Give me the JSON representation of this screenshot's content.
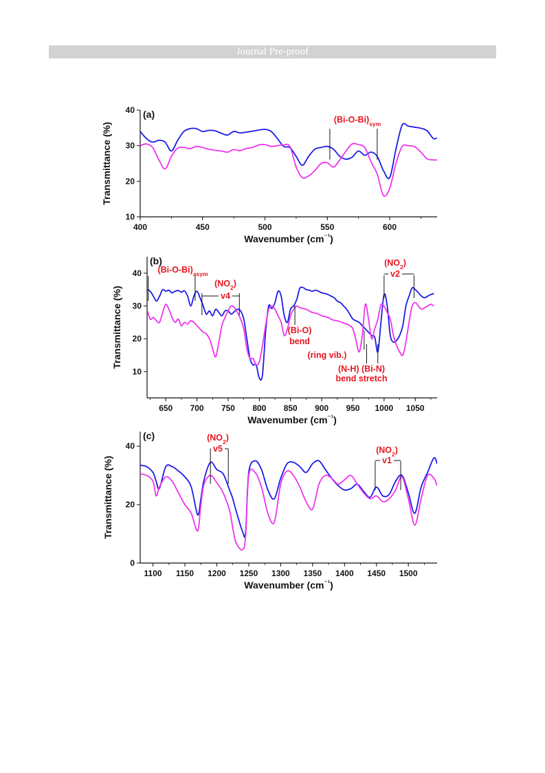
{
  "header": {
    "banner_text": "Journal Pre-proof"
  },
  "colors": {
    "series_1": "#1a1ae6",
    "series_2": "#ee33ee",
    "annotation": "#e8141e",
    "axis": "#111111"
  },
  "chart_data": [
    {
      "type": "line",
      "panel_label": "(a)",
      "xlabel": "Wavenumber (cm⁻¹)",
      "ylabel": "Transmittance (%)",
      "xlim": [
        400,
        638
      ],
      "ylim": [
        10,
        40
      ],
      "xticks": [
        400,
        450,
        500,
        550,
        600
      ],
      "yticks": [
        10,
        20,
        30,
        40
      ],
      "grid": false,
      "legend": "none",
      "annotations": [
        {
          "text": "(Bi-O-Bi)",
          "sub": "sym",
          "marks": [
            552,
            590
          ]
        }
      ],
      "series": [
        {
          "color": "blue",
          "x": [
            400,
            405,
            410,
            415,
            420,
            425,
            430,
            435,
            440,
            445,
            450,
            455,
            460,
            465,
            470,
            475,
            480,
            485,
            490,
            495,
            500,
            505,
            510,
            515,
            520,
            525,
            530,
            535,
            540,
            545,
            550,
            555,
            560,
            565,
            570,
            575,
            580,
            585,
            590,
            595,
            600,
            605,
            610,
            615,
            620,
            625,
            630,
            635,
            638
          ],
          "y": [
            34,
            32,
            31,
            31.5,
            31,
            28.5,
            31.5,
            34,
            34.8,
            34.8,
            34,
            34.3,
            34.2,
            33.5,
            33,
            34,
            33.6,
            33.8,
            34.1,
            34.4,
            34.6,
            34,
            32,
            29.8,
            29.5,
            27,
            24.5,
            27,
            29,
            29.5,
            29.8,
            29,
            27,
            26.2,
            26.8,
            28.5,
            27.3,
            28.2,
            27,
            23,
            21,
            29,
            35.8,
            35.5,
            35.2,
            34.9,
            34.2,
            32,
            32.2
          ]
        },
        {
          "color": "magenta",
          "x": [
            400,
            405,
            410,
            415,
            420,
            425,
            430,
            435,
            440,
            445,
            450,
            455,
            460,
            465,
            470,
            475,
            480,
            485,
            490,
            495,
            500,
            505,
            510,
            515,
            520,
            525,
            530,
            535,
            540,
            545,
            550,
            555,
            560,
            565,
            570,
            575,
            580,
            585,
            590,
            595,
            600,
            605,
            610,
            615,
            620,
            625,
            630,
            635,
            638
          ],
          "y": [
            30,
            30.5,
            29.5,
            26,
            23.5,
            27,
            29.3,
            29.5,
            29.2,
            29.8,
            29.5,
            29,
            28.7,
            28.5,
            28.2,
            28.9,
            28.6,
            29.2,
            29.5,
            30.2,
            30.3,
            29.8,
            30,
            30.2,
            29.8,
            24,
            21,
            21.5,
            23,
            25,
            25.2,
            24,
            26,
            28.5,
            30.5,
            30.3,
            29.5,
            25.5,
            22,
            16,
            18,
            25,
            29.8,
            30,
            29.7,
            28.2,
            26.3,
            26,
            26
          ]
        }
      ]
    },
    {
      "type": "line",
      "panel_label": "(b)",
      "xlabel": "Wavenumber (cm⁻¹)",
      "ylabel": "Transmittance (%)",
      "xlim": [
        620,
        1085
      ],
      "ylim": [
        2,
        45
      ],
      "xticks": [
        650,
        700,
        750,
        800,
        850,
        900,
        950,
        1000,
        1050
      ],
      "yticks": [
        10,
        20,
        30,
        40
      ],
      "grid": false,
      "legend": "none",
      "annotations": [
        {
          "text": "(Bi-O-Bi)",
          "sub": "asym",
          "marks": [
            622,
            697
          ]
        },
        {
          "text": "(NO",
          "sub": "2",
          "tail": ")",
          "line2": "v4",
          "marks": [
            708,
            768
          ]
        },
        {
          "text": "(NO",
          "sub": "2",
          "tail": ")",
          "line2": "v2",
          "marks": [
            1000,
            1048
          ]
        },
        {
          "text": "(Bi-O)",
          "line2": "bend",
          "marks": [
            857
          ]
        },
        {
          "text": "(ring vib.)",
          "marks": [
            968
          ]
        },
        {
          "text": "(N-H) (Bi-N)",
          "line2": "bend stretch",
          "marks": [
            972,
            990
          ]
        }
      ],
      "series": [
        {
          "color": "blue",
          "x": [
            620,
            625,
            630,
            635,
            640,
            645,
            650,
            655,
            660,
            665,
            670,
            675,
            680,
            685,
            690,
            695,
            700,
            705,
            710,
            715,
            720,
            725,
            730,
            735,
            740,
            745,
            750,
            755,
            760,
            765,
            770,
            775,
            780,
            785,
            790,
            795,
            800,
            805,
            810,
            815,
            820,
            825,
            830,
            835,
            840,
            845,
            850,
            855,
            860,
            865,
            870,
            875,
            880,
            885,
            890,
            895,
            900,
            905,
            910,
            915,
            920,
            925,
            930,
            935,
            940,
            945,
            950,
            955,
            960,
            965,
            970,
            975,
            980,
            985,
            990,
            995,
            1000,
            1005,
            1010,
            1015,
            1020,
            1025,
            1030,
            1035,
            1040,
            1045,
            1050,
            1055,
            1060,
            1065,
            1070,
            1075,
            1080
          ],
          "y": [
            35,
            34.5,
            33,
            31.5,
            33,
            35,
            34.5,
            34.8,
            34,
            34.5,
            34.7,
            34.2,
            34.6,
            33,
            30,
            33,
            34.5,
            32.5,
            30,
            27.5,
            28.5,
            27,
            29,
            28,
            27,
            28.5,
            28.5,
            27.5,
            28.3,
            29,
            28.5,
            26,
            20,
            14,
            12,
            12,
            8,
            9,
            22,
            30,
            29.2,
            31,
            34.5,
            33,
            27,
            25,
            29,
            30,
            32,
            35.4,
            35.6,
            35,
            34.8,
            34.5,
            34.8,
            34.5,
            34,
            33.8,
            33.5,
            33,
            32.5,
            31.5,
            31,
            30,
            29,
            27.5,
            26,
            25.5,
            25,
            24,
            23,
            22,
            21,
            20.5,
            16,
            25,
            33.5,
            30,
            21,
            19,
            19.5,
            21,
            24,
            30,
            33,
            35.5,
            35,
            34,
            33,
            32.5,
            33,
            33.5,
            33.8
          ]
        },
        {
          "color": "magenta",
          "x": [
            620,
            625,
            630,
            635,
            640,
            645,
            650,
            655,
            660,
            665,
            670,
            675,
            680,
            685,
            690,
            695,
            700,
            705,
            710,
            715,
            720,
            725,
            730,
            735,
            740,
            745,
            750,
            755,
            760,
            765,
            770,
            775,
            780,
            785,
            790,
            795,
            800,
            805,
            810,
            815,
            820,
            825,
            830,
            835,
            840,
            845,
            850,
            855,
            860,
            865,
            870,
            875,
            880,
            885,
            890,
            895,
            900,
            905,
            910,
            915,
            920,
            925,
            930,
            935,
            940,
            945,
            950,
            955,
            960,
            965,
            970,
            975,
            980,
            985,
            990,
            995,
            1000,
            1005,
            1010,
            1015,
            1020,
            1025,
            1030,
            1035,
            1040,
            1045,
            1050,
            1055,
            1060,
            1065,
            1070,
            1075,
            1080
          ],
          "y": [
            29,
            26,
            26.5,
            25.5,
            25,
            28,
            30.5,
            29,
            26.5,
            25,
            26,
            24,
            25,
            24.5,
            25.5,
            25,
            24,
            23,
            22,
            21.5,
            20,
            17,
            14.5,
            19,
            24,
            26.5,
            28.5,
            30,
            29.5,
            28,
            26,
            23,
            17,
            14,
            14,
            12,
            13,
            18,
            24,
            29,
            30,
            29,
            27,
            25,
            21,
            23,
            27,
            29,
            30,
            29.5,
            29.2,
            29,
            28.5,
            28,
            27.8,
            27.5,
            27,
            26.8,
            26.5,
            26,
            25.6,
            25.5,
            25.2,
            24.8,
            24.5,
            24,
            23,
            19.5,
            16,
            21,
            30.5,
            26,
            20,
            23,
            26,
            30.4,
            29.9,
            28,
            26,
            21,
            18,
            16,
            15,
            19,
            25,
            30,
            31,
            30,
            29,
            29.5,
            30,
            30.5,
            30
          ]
        }
      ]
    },
    {
      "type": "line",
      "panel_label": "(c)",
      "xlabel": "Wavenumber (cm⁻¹)",
      "ylabel": "Transmittance (%)",
      "xlim": [
        1080,
        1545
      ],
      "ylim": [
        0,
        45
      ],
      "xticks": [
        1100,
        1150,
        1200,
        1250,
        1300,
        1350,
        1400,
        1450,
        1500
      ],
      "yticks": [
        0,
        20,
        40
      ],
      "grid": false,
      "legend": "none",
      "annotations": [
        {
          "text": "(NO",
          "sub": "2",
          "tail": ")",
          "line2": "v5",
          "marks": [
            1190,
            1218
          ]
        },
        {
          "text": "(NO",
          "sub": "2",
          "tail": ")",
          "line2": "v1",
          "marks": [
            1448,
            1488
          ]
        }
      ],
      "series": [
        {
          "color": "blue",
          "x": [
            1080,
            1090,
            1100,
            1105,
            1110,
            1120,
            1130,
            1140,
            1150,
            1160,
            1170,
            1175,
            1180,
            1190,
            1200,
            1210,
            1220,
            1225,
            1230,
            1240,
            1245,
            1250,
            1260,
            1270,
            1280,
            1290,
            1300,
            1310,
            1320,
            1330,
            1340,
            1350,
            1360,
            1370,
            1380,
            1390,
            1400,
            1410,
            1420,
            1430,
            1440,
            1450,
            1460,
            1470,
            1480,
            1490,
            1500,
            1510,
            1520,
            1530,
            1540,
            1545
          ],
          "y": [
            33.5,
            33,
            31,
            28,
            25.5,
            33,
            33,
            31.5,
            29.5,
            26,
            16.5,
            22,
            28.5,
            34.5,
            32,
            30.5,
            25,
            22,
            18,
            11,
            10.5,
            31,
            35,
            32,
            25,
            22,
            29,
            34,
            34.5,
            33,
            31,
            34,
            35,
            32,
            29,
            26.5,
            25,
            25.5,
            27,
            24.5,
            22.5,
            26,
            23,
            23.5,
            28,
            30,
            24,
            17,
            26,
            31,
            36,
            34
          ]
        },
        {
          "color": "magenta",
          "x": [
            1080,
            1090,
            1100,
            1105,
            1110,
            1120,
            1130,
            1140,
            1150,
            1160,
            1170,
            1175,
            1180,
            1190,
            1200,
            1210,
            1220,
            1225,
            1230,
            1240,
            1245,
            1250,
            1260,
            1270,
            1280,
            1290,
            1300,
            1310,
            1320,
            1330,
            1340,
            1350,
            1360,
            1370,
            1380,
            1390,
            1400,
            1410,
            1420,
            1430,
            1440,
            1450,
            1460,
            1470,
            1480,
            1490,
            1500,
            1510,
            1520,
            1530,
            1540,
            1545
          ],
          "y": [
            30.5,
            30,
            28,
            23,
            26,
            29.5,
            28,
            24,
            20,
            17,
            11,
            20,
            27,
            30,
            27.5,
            24,
            18,
            12,
            7,
            4.5,
            9,
            30,
            31,
            26,
            17,
            14,
            27,
            31.5,
            30,
            26,
            21,
            18.5,
            27,
            30,
            29,
            27,
            28.5,
            30,
            27,
            24,
            22,
            23,
            21,
            22,
            25,
            29.5,
            22,
            13,
            22,
            30,
            29,
            26.5
          ]
        }
      ]
    }
  ]
}
